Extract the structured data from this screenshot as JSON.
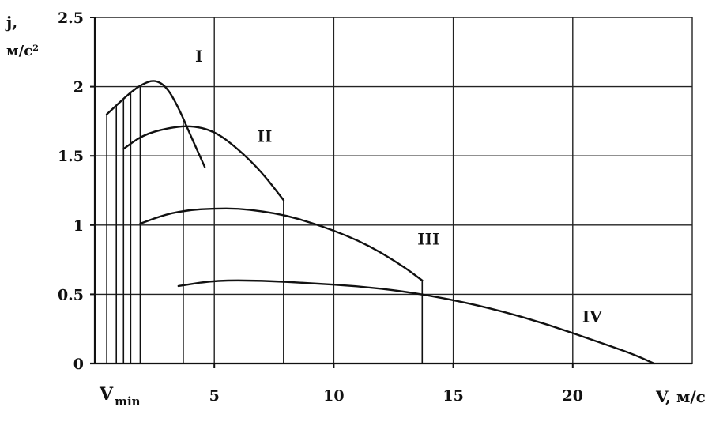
{
  "chart_data": {
    "type": "line",
    "title": "",
    "ylabel_line1": "j,",
    "ylabel_line2": "м/с²",
    "xlabel": "V, м/с",
    "xmin_label": "V",
    "xmin_sub": "min",
    "xlim": [
      0,
      25
    ],
    "ylim": [
      0,
      2.5
    ],
    "grid": true,
    "x_ticks": [
      5,
      10,
      15,
      20
    ],
    "y_ticks": [
      "0",
      "0.5",
      "1",
      "1.5",
      "2",
      "2.5"
    ],
    "y_tick_values": [
      0,
      0.5,
      1,
      1.5,
      2,
      2.5
    ],
    "series": [
      {
        "name": "I",
        "x": [
          0.5,
          1.0,
          1.5,
          2.0,
          2.5,
          3.0,
          3.5,
          4.0,
          4.6
        ],
        "y": [
          1.8,
          1.88,
          1.96,
          2.02,
          2.05,
          2.0,
          1.85,
          1.65,
          1.42
        ]
      },
      {
        "name": "II",
        "x": [
          1.2,
          2.0,
          3.0,
          4.0,
          5.0,
          6.0,
          7.0,
          7.9
        ],
        "y": [
          1.55,
          1.65,
          1.7,
          1.72,
          1.68,
          1.55,
          1.38,
          1.18
        ]
      },
      {
        "name": "III",
        "x": [
          1.9,
          3.0,
          4.0,
          5.0,
          6.0,
          7.0,
          8.0,
          9.0,
          10.0,
          11.0,
          12.0,
          13.0,
          13.7
        ],
        "y": [
          1.01,
          1.08,
          1.11,
          1.12,
          1.12,
          1.1,
          1.07,
          1.02,
          0.96,
          0.89,
          0.8,
          0.69,
          0.6
        ]
      },
      {
        "name": "IV",
        "x": [
          3.5,
          5.0,
          7.0,
          9.0,
          11.0,
          13.0,
          15.0,
          17.0,
          19.0,
          21.0,
          22.5,
          23.4
        ],
        "y": [
          0.56,
          0.6,
          0.6,
          0.58,
          0.56,
          0.52,
          0.46,
          0.38,
          0.28,
          0.16,
          0.07,
          0.0
        ]
      }
    ],
    "vertical_lines_x": [
      0.5,
      0.9,
      1.2,
      1.5,
      1.9,
      3.7,
      7.9,
      13.7
    ]
  }
}
